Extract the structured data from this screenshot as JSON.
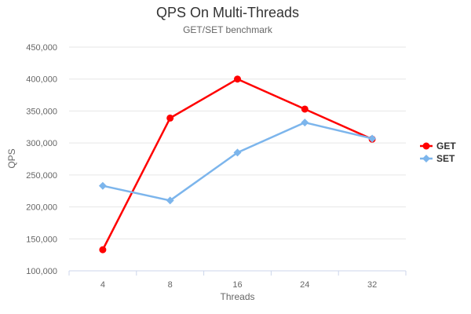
{
  "chart_data": {
    "type": "line",
    "title": "QPS On Multi-Threads",
    "subtitle": "GET/SET benchmark",
    "xlabel": "Threads",
    "ylabel": "QPS",
    "categories": [
      "4",
      "8",
      "16",
      "24",
      "32"
    ],
    "series": [
      {
        "name": "GET",
        "color": "#ff0000",
        "marker": "circle",
        "values": [
          133000,
          339000,
          400000,
          353000,
          306000
        ]
      },
      {
        "name": "SET",
        "color": "#7cb5ec",
        "marker": "diamond",
        "values": [
          233000,
          210000,
          285000,
          332000,
          307000
        ]
      }
    ],
    "ylim": [
      100000,
      450000
    ],
    "y_ticks": [
      {
        "value": 100000,
        "label": "100,000"
      },
      {
        "value": 150000,
        "label": "150,000"
      },
      {
        "value": 200000,
        "label": "200,000"
      },
      {
        "value": 250000,
        "label": "250,000"
      },
      {
        "value": 300000,
        "label": "300,000"
      },
      {
        "value": 350000,
        "label": "350,000"
      },
      {
        "value": 400000,
        "label": "400,000"
      },
      {
        "value": 450000,
        "label": "450,000"
      }
    ],
    "legend_position": "right",
    "grid": "horizontal",
    "colors": {
      "grid": "#e6e6e6",
      "axis_line": "#ccd6eb",
      "tick_text": "#666666",
      "axis_title_text": "#666666",
      "title_text": "#333333",
      "subtitle_text": "#666666",
      "legend_text": "#333333",
      "background": "#ffffff"
    }
  }
}
